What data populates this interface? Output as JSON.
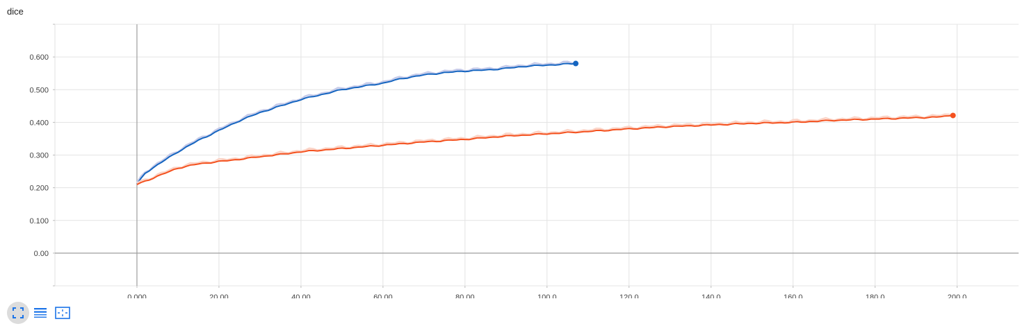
{
  "card": {
    "title": "dice"
  },
  "toolbar": {
    "buttons": [
      {
        "icon": "expand-fullscreen-icon",
        "active": true
      },
      {
        "icon": "list-lines-icon",
        "active": false
      },
      {
        "icon": "fit-domain-icon",
        "active": false
      }
    ],
    "icon_color": "#1a73e8"
  },
  "chart_data": {
    "type": "line",
    "title": "dice",
    "xlabel": "",
    "ylabel": "",
    "xlim": [
      -20,
      215
    ],
    "ylim": [
      -0.1,
      0.7
    ],
    "grid": true,
    "x_ticks": [
      0,
      20,
      40,
      60,
      80,
      100,
      120,
      140,
      160,
      180,
      200
    ],
    "x_tick_labels": [
      "0.000",
      "20.00",
      "40.00",
      "60.00",
      "80.00",
      "100.0",
      "120.0",
      "140.0",
      "160.0",
      "180.0",
      "200.0"
    ],
    "y_ticks": [
      0,
      0.1,
      0.2,
      0.3,
      0.4,
      0.5,
      0.6
    ],
    "y_tick_labels": [
      "0.00",
      "0.100",
      "0.200",
      "0.300",
      "0.400",
      "0.500",
      "0.600"
    ],
    "series": [
      {
        "color": "#1565c0",
        "raw_color": "#c5cae9",
        "x": [
          0,
          2,
          5,
          10,
          15,
          20,
          25,
          30,
          35,
          40,
          45,
          50,
          55,
          60,
          65,
          70,
          75,
          80,
          85,
          90,
          95,
          100,
          107
        ],
        "values": [
          0.21,
          0.245,
          0.27,
          0.31,
          0.345,
          0.375,
          0.405,
          0.43,
          0.45,
          0.47,
          0.485,
          0.5,
          0.51,
          0.52,
          0.535,
          0.545,
          0.552,
          0.557,
          0.56,
          0.565,
          0.572,
          0.575,
          0.58
        ]
      },
      {
        "color": "#f4511e",
        "raw_color": "#fbd3c6",
        "x": [
          0,
          5,
          10,
          15,
          20,
          25,
          30,
          35,
          40,
          50,
          60,
          70,
          80,
          90,
          100,
          110,
          120,
          130,
          140,
          150,
          160,
          170,
          180,
          190,
          195,
          199
        ],
        "values": [
          0.21,
          0.235,
          0.26,
          0.273,
          0.28,
          0.287,
          0.295,
          0.302,
          0.31,
          0.32,
          0.33,
          0.34,
          0.348,
          0.358,
          0.365,
          0.372,
          0.38,
          0.387,
          0.392,
          0.397,
          0.4,
          0.406,
          0.41,
          0.414,
          0.416,
          0.421
        ]
      }
    ]
  }
}
